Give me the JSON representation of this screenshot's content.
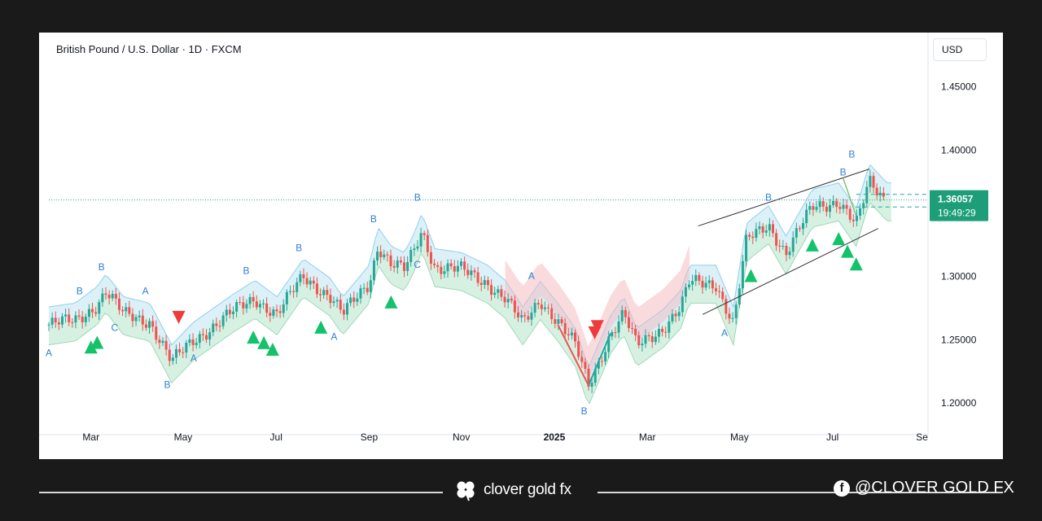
{
  "chart_title": "British Pound / U.S. Dollar · 1D · FXCM",
  "currency_button": "USD",
  "footer": {
    "brand": "clover gold fx",
    "social_handle": "@CLOVER GOLD FX",
    "brand_icon": "clover-icon",
    "social_icon": "facebook-icon"
  },
  "colors": {
    "up": "#26a69a",
    "down": "#ef5350",
    "price_line": "#26a69a",
    "wave_label": "#2f7fd1",
    "bullish_marker": "#14c26b",
    "bearish_marker": "#ef3b3b"
  },
  "chart_data": {
    "type": "candlestick",
    "symbol": "GBPUSD",
    "timeframe": "1D",
    "source": "FXCM",
    "ylim": [
      1.175,
      1.48
    ],
    "x_ticks": [
      "Mar",
      "May",
      "Jul",
      "Sep",
      "Nov",
      "2025",
      "Mar",
      "May",
      "Jul",
      "Se"
    ],
    "y_ticks": [
      "1.45000",
      "1.40000",
      "1.30000",
      "1.25000",
      "1.20000"
    ],
    "last_price": "1.36057",
    "countdown": "19:49:29",
    "price_path": [
      {
        "t": 0,
        "p": 1.262
      },
      {
        "t": 0.03,
        "p": 1.265
      },
      {
        "t": 0.055,
        "p": 1.278
      },
      {
        "t": 0.065,
        "p": 1.288
      },
      {
        "t": 0.085,
        "p": 1.27
      },
      {
        "t": 0.115,
        "p": 1.265
      },
      {
        "t": 0.14,
        "p": 1.232
      },
      {
        "t": 0.165,
        "p": 1.25
      },
      {
        "t": 0.21,
        "p": 1.272
      },
      {
        "t": 0.235,
        "p": 1.283
      },
      {
        "t": 0.26,
        "p": 1.27
      },
      {
        "t": 0.29,
        "p": 1.3
      },
      {
        "t": 0.32,
        "p": 1.285
      },
      {
        "t": 0.335,
        "p": 1.27
      },
      {
        "t": 0.365,
        "p": 1.295
      },
      {
        "t": 0.375,
        "p": 1.325
      },
      {
        "t": 0.39,
        "p": 1.31
      },
      {
        "t": 0.405,
        "p": 1.305
      },
      {
        "t": 0.415,
        "p": 1.318
      },
      {
        "t": 0.425,
        "p": 1.336
      },
      {
        "t": 0.44,
        "p": 1.308
      },
      {
        "t": 0.47,
        "p": 1.305
      },
      {
        "t": 0.5,
        "p": 1.295
      },
      {
        "t": 0.52,
        "p": 1.283
      },
      {
        "t": 0.54,
        "p": 1.262
      },
      {
        "t": 0.56,
        "p": 1.282
      },
      {
        "t": 0.58,
        "p": 1.265
      },
      {
        "t": 0.6,
        "p": 1.245
      },
      {
        "t": 0.615,
        "p": 1.214
      },
      {
        "t": 0.64,
        "p": 1.255
      },
      {
        "t": 0.655,
        "p": 1.27
      },
      {
        "t": 0.67,
        "p": 1.245
      },
      {
        "t": 0.7,
        "p": 1.26
      },
      {
        "t": 0.72,
        "p": 1.275
      },
      {
        "t": 0.73,
        "p": 1.295
      },
      {
        "t": 0.76,
        "p": 1.295
      },
      {
        "t": 0.78,
        "p": 1.262
      },
      {
        "t": 0.795,
        "p": 1.328
      },
      {
        "t": 0.82,
        "p": 1.342
      },
      {
        "t": 0.84,
        "p": 1.318
      },
      {
        "t": 0.87,
        "p": 1.355
      },
      {
        "t": 0.9,
        "p": 1.36
      },
      {
        "t": 0.92,
        "p": 1.34
      },
      {
        "t": 0.935,
        "p": 1.375
      },
      {
        "t": 0.955,
        "p": 1.36
      }
    ],
    "wave_labels": [
      {
        "text": "A",
        "t": 0.0,
        "p": 1.237
      },
      {
        "text": "B",
        "t": 0.035,
        "p": 1.286
      },
      {
        "text": "B",
        "t": 0.06,
        "p": 1.305
      },
      {
        "text": "C",
        "t": 0.075,
        "p": 1.257
      },
      {
        "text": "A",
        "t": 0.11,
        "p": 1.286
      },
      {
        "text": "B",
        "t": 0.135,
        "p": 1.212
      },
      {
        "text": "A",
        "t": 0.165,
        "p": 1.233
      },
      {
        "text": "B",
        "t": 0.225,
        "p": 1.302
      },
      {
        "text": "B",
        "t": 0.285,
        "p": 1.32
      },
      {
        "text": "A",
        "t": 0.325,
        "p": 1.25
      },
      {
        "text": "B",
        "t": 0.37,
        "p": 1.343
      },
      {
        "text": "B",
        "t": 0.42,
        "p": 1.36
      },
      {
        "text": "C",
        "t": 0.42,
        "p": 1.307
      },
      {
        "text": "A",
        "t": 0.55,
        "p": 1.298
      },
      {
        "text": "B",
        "t": 0.61,
        "p": 1.191
      },
      {
        "text": "A",
        "t": 0.77,
        "p": 1.253
      },
      {
        "text": "B",
        "t": 0.82,
        "p": 1.36
      },
      {
        "text": "B",
        "t": 0.905,
        "p": 1.38
      },
      {
        "text": "B",
        "t": 0.915,
        "p": 1.394
      }
    ]
  }
}
